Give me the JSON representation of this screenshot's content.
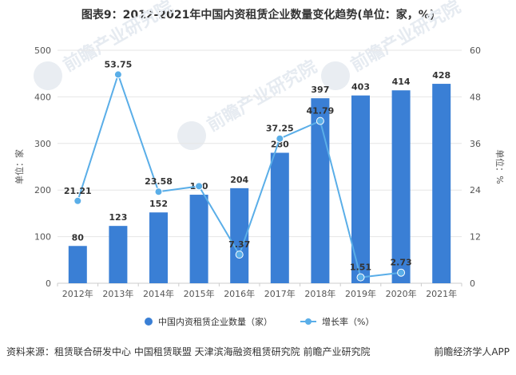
{
  "title": "图表9：2012-2021年中国内资租赁企业数量变化趋势(单位：家，%)",
  "source_text": "资料来源：租赁联合研发中心 中国租赁联盟 天津滨海融资租赁研究院 前瞻产业研究院",
  "brand_text": "前瞻经济学人APP",
  "watermark": [
    "前瞻产业研究院",
    "前瞻产业研究院",
    "前瞻产业研究院"
  ],
  "colors": {
    "bar": "#3a7fd5",
    "line": "#5aaee8",
    "grid": "#e6e6e6"
  },
  "chart_data": {
    "type": "bar",
    "categories": [
      "2012年",
      "2013年",
      "2014年",
      "2015年",
      "2016年",
      "2017年",
      "2018年",
      "2019年",
      "2020年",
      "2021年"
    ],
    "series": [
      {
        "name": "中国内资租赁企业数量（家）",
        "type": "bar",
        "axis": "left",
        "values": [
          80,
          123,
          152,
          190,
          204,
          280,
          397,
          403,
          414,
          428
        ]
      },
      {
        "name": "增长率（%）",
        "type": "line",
        "axis": "right",
        "values": [
          21.21,
          53.75,
          23.58,
          25.0,
          7.37,
          37.25,
          41.79,
          1.51,
          2.73,
          null
        ],
        "labels": [
          "21.21",
          "53.75",
          "23.58",
          "",
          "7.37",
          "37.25",
          "41.79",
          "1.51",
          "2.73",
          ""
        ]
      }
    ],
    "ylabel": "单位：家",
    "y2label": "单位：%",
    "ylim": [
      0,
      500
    ],
    "yticks": [
      0,
      100,
      200,
      300,
      400,
      500
    ],
    "y2lim": [
      0,
      60
    ],
    "y2ticks": [
      0,
      12,
      24,
      36,
      48,
      60
    ],
    "grid": true,
    "legend": "bottom"
  }
}
